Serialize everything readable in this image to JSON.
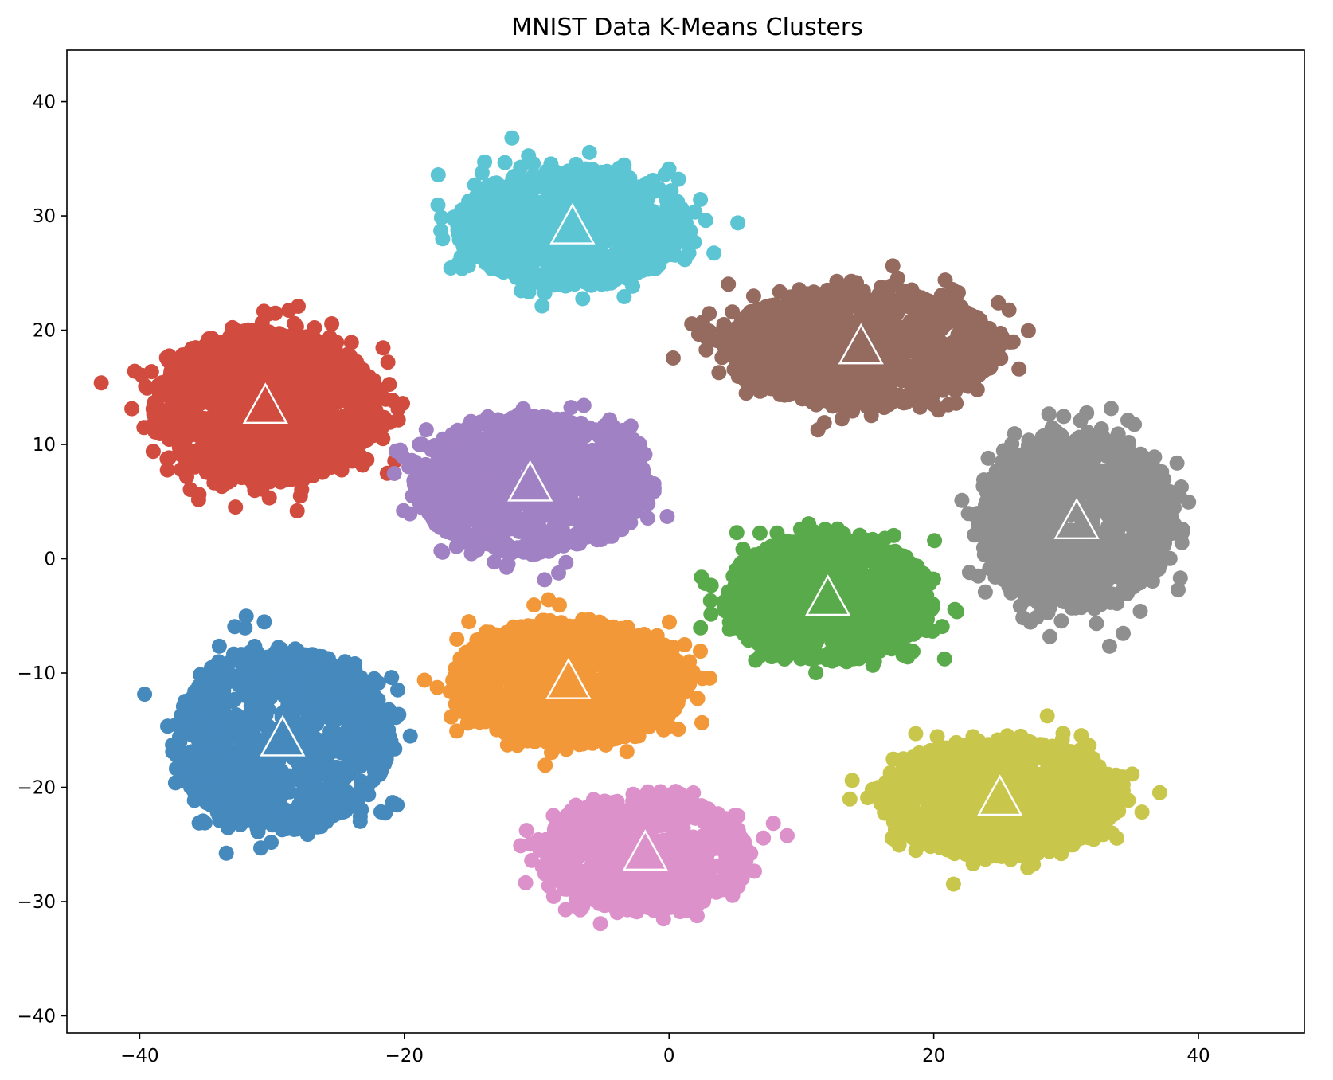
{
  "chart_data": {
    "type": "scatter",
    "title": "MNIST Data K-Means Clusters",
    "xlabel": "",
    "ylabel": "",
    "xlim": [
      -45.5,
      48
    ],
    "ylim": [
      -41.5,
      44.5
    ],
    "xticks": [
      -40,
      -20,
      0,
      20,
      40
    ],
    "xtick_labels": [
      "−40",
      "−20",
      "0",
      "20",
      "40"
    ],
    "yticks": [
      -40,
      -30,
      -20,
      -10,
      0,
      10,
      20,
      30,
      40
    ],
    "ytick_labels": [
      "−40",
      "−30",
      "−20",
      "−10",
      "0",
      "10",
      "20",
      "30",
      "40"
    ],
    "grid": false,
    "legend": "none",
    "clusters": [
      {
        "color": "#d14b3e",
        "centroid": [
          -30.5,
          13.3
        ],
        "spread": [
          8.5,
          6.8
        ],
        "count": 1100
      },
      {
        "color": "#4589bd",
        "centroid": [
          -29.2,
          -15.8
        ],
        "spread": [
          8.2,
          8.0
        ],
        "count": 1000
      },
      {
        "color": "#5cc5d4",
        "centroid": [
          -7.3,
          29.0
        ],
        "spread": [
          8.8,
          5.2
        ],
        "count": 950
      },
      {
        "color": "#a081c3",
        "centroid": [
          -10.5,
          6.5
        ],
        "spread": [
          8.8,
          6.0
        ],
        "count": 1000
      },
      {
        "color": "#f29838",
        "centroid": [
          -7.6,
          -10.8
        ],
        "spread": [
          8.8,
          5.5
        ],
        "count": 950
      },
      {
        "color": "#dd91ca",
        "centroid": [
          -1.8,
          -25.8
        ],
        "spread": [
          8.0,
          5.0
        ],
        "count": 750
      },
      {
        "color": "#956a5f",
        "centroid": [
          14.5,
          18.5
        ],
        "spread": [
          10.5,
          5.2
        ],
        "count": 950
      },
      {
        "color": "#59aa4a",
        "centroid": [
          12.0,
          -3.5
        ],
        "spread": [
          8.0,
          5.5
        ],
        "count": 950
      },
      {
        "color": "#8f8f8f",
        "centroid": [
          30.8,
          3.2
        ],
        "spread": [
          7.5,
          7.8
        ],
        "count": 1050
      },
      {
        "color": "#c8c74c",
        "centroid": [
          25.0,
          -21.0
        ],
        "spread": [
          9.0,
          5.2
        ],
        "count": 1000
      }
    ]
  }
}
